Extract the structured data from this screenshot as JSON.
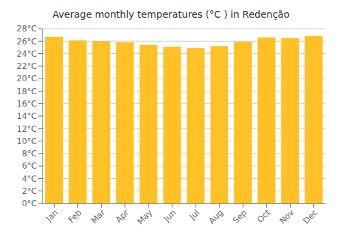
{
  "chart_data": {
    "type": "bar",
    "title": "Average monthly temperatures (°C ) in Redenção",
    "categories": [
      "Jan",
      "Feb",
      "Mar",
      "Apr",
      "May",
      "Jun",
      "Jul",
      "Aug",
      "Sep",
      "Oct",
      "Nov",
      "Dec"
    ],
    "values": [
      26.7,
      26.1,
      26.0,
      25.8,
      25.4,
      25.1,
      24.9,
      25.2,
      25.9,
      26.6,
      26.5,
      26.8
    ],
    "color": "#FFC125",
    "ylim": [
      0,
      28
    ],
    "yticks": [
      {
        "value": 0,
        "label": "0°C"
      },
      {
        "value": 2,
        "label": "2°C"
      },
      {
        "value": 4,
        "label": "4°C"
      },
      {
        "value": 6,
        "label": "6°C"
      },
      {
        "value": 8,
        "label": "8°C"
      },
      {
        "value": 10,
        "label": "10°C"
      },
      {
        "value": 12,
        "label": "12°C"
      },
      {
        "value": 14,
        "label": "14°C"
      },
      {
        "value": 16,
        "label": "16°C"
      },
      {
        "value": 18,
        "label": "18°C"
      },
      {
        "value": 20,
        "label": "20°C"
      },
      {
        "value": 22,
        "label": "22°C"
      },
      {
        "value": 24,
        "label": "24°C"
      },
      {
        "value": 26,
        "label": "26°C"
      },
      {
        "value": 28,
        "label": "28°C"
      }
    ],
    "grid": true
  }
}
